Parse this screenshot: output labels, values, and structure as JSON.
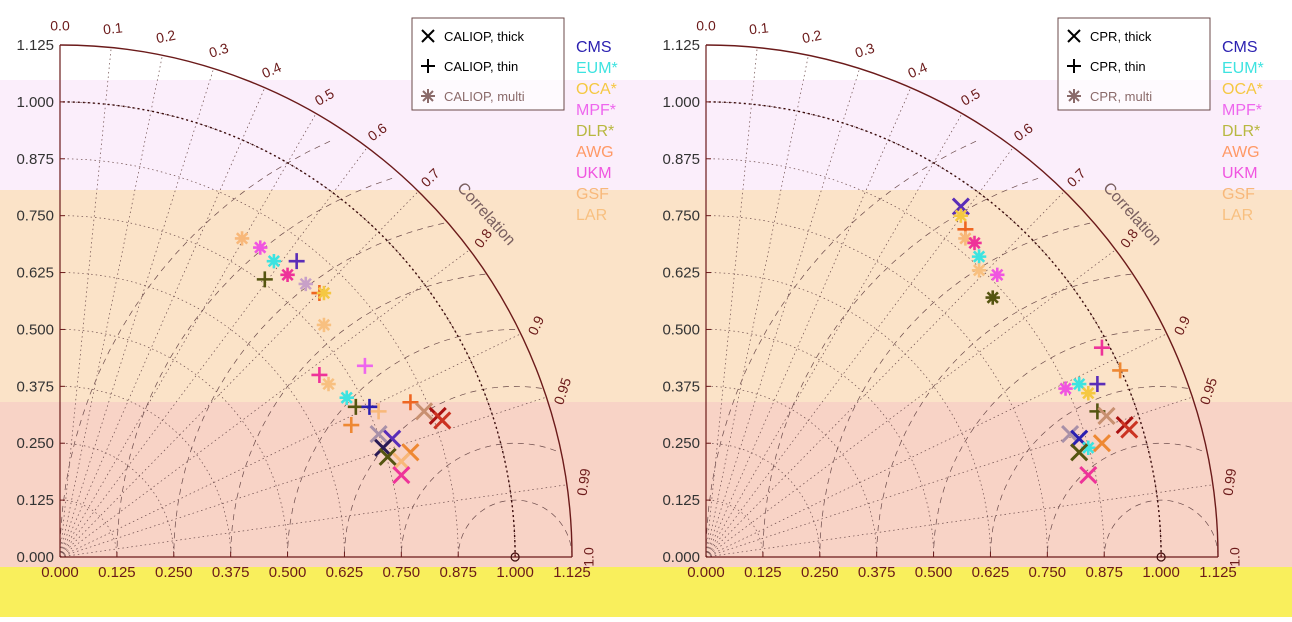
{
  "chart_data": [
    {
      "type": "scatter",
      "variant": "taylor-diagram",
      "title": "",
      "xlabel": "",
      "ylabel": "",
      "xlim": [
        0,
        1.125
      ],
      "ylim": [
        0,
        1.125
      ],
      "correlation_label": "Correlation",
      "x_ticks": [
        "0.000",
        "0.125",
        "0.250",
        "0.375",
        "0.500",
        "0.625",
        "0.750",
        "0.875",
        "1.000",
        "1.125"
      ],
      "y_ticks": [
        "0.000",
        "0.125",
        "0.250",
        "0.375",
        "0.500",
        "0.625",
        "0.750",
        "0.875",
        "1.000",
        "1.125"
      ],
      "corr_ticks": [
        "0.0",
        "0.1",
        "0.2",
        "0.3",
        "0.4",
        "0.5",
        "0.6",
        "0.7",
        "0.8",
        "0.9",
        "0.95",
        "0.99",
        "1.0"
      ],
      "legend_types": [
        {
          "label": "CALIOP, thick",
          "marker": "x"
        },
        {
          "label": "CALIOP, thin",
          "marker": "+"
        },
        {
          "label": "CALIOP, multi",
          "marker": "*"
        }
      ],
      "datasets": [
        {
          "name": "CMS",
          "color": "#2a1fb0"
        },
        {
          "name": "EUM*",
          "color": "#3de3e0"
        },
        {
          "name": "OCA*",
          "color": "#f5c842"
        },
        {
          "name": "MPF*",
          "color": "#ee66ee"
        },
        {
          "name": "DLR*",
          "color": "#b8b840"
        },
        {
          "name": "AWG",
          "color": "#ff9966"
        },
        {
          "name": "UKM",
          "color": "#f055e0"
        },
        {
          "name": "GSF",
          "color": "#f8b87a"
        },
        {
          "name": "LAR",
          "color": "#f8c080"
        }
      ],
      "points": [
        {
          "marker": "*",
          "color": "#f8b87a",
          "x": 0.4,
          "y": 0.7
        },
        {
          "marker": "*",
          "color": "#f055e0",
          "x": 0.44,
          "y": 0.68
        },
        {
          "marker": "*",
          "color": "#3de3e0",
          "x": 0.47,
          "y": 0.65
        },
        {
          "marker": "+",
          "color": "#5a2db8",
          "x": 0.52,
          "y": 0.65
        },
        {
          "marker": "*",
          "color": "#ee3399",
          "x": 0.5,
          "y": 0.62
        },
        {
          "marker": "+",
          "color": "#555511",
          "x": 0.45,
          "y": 0.61
        },
        {
          "marker": "*",
          "color": "#c8a0c8",
          "x": 0.54,
          "y": 0.6
        },
        {
          "marker": "+",
          "color": "#ee6622",
          "x": 0.57,
          "y": 0.58
        },
        {
          "marker": "*",
          "color": "#f5c842",
          "x": 0.58,
          "y": 0.58
        },
        {
          "marker": "*",
          "color": "#f8c080",
          "x": 0.58,
          "y": 0.51
        },
        {
          "marker": "+",
          "color": "#ee3399",
          "x": 0.57,
          "y": 0.4
        },
        {
          "marker": "+",
          "color": "#ee66ee",
          "x": 0.67,
          "y": 0.42
        },
        {
          "marker": "*",
          "color": "#f8c080",
          "x": 0.59,
          "y": 0.38
        },
        {
          "marker": "*",
          "color": "#3de3e0",
          "x": 0.63,
          "y": 0.35
        },
        {
          "marker": "+",
          "color": "#555511",
          "x": 0.65,
          "y": 0.33
        },
        {
          "marker": "+",
          "color": "#2a1fb0",
          "x": 0.68,
          "y": 0.33
        },
        {
          "marker": "+",
          "color": "#f8b87a",
          "x": 0.7,
          "y": 0.32
        },
        {
          "marker": "+",
          "color": "#ee6622",
          "x": 0.77,
          "y": 0.34
        },
        {
          "marker": "x",
          "color": "#c89070",
          "x": 0.8,
          "y": 0.32
        },
        {
          "marker": "x",
          "color": "#aa1111",
          "x": 0.83,
          "y": 0.31
        },
        {
          "marker": "x",
          "color": "#cc3322",
          "x": 0.84,
          "y": 0.3
        },
        {
          "marker": "+",
          "color": "#ee8833",
          "x": 0.64,
          "y": 0.29
        },
        {
          "marker": "x",
          "color": "#a890a8",
          "x": 0.7,
          "y": 0.27
        },
        {
          "marker": "x",
          "color": "#5a2db8",
          "x": 0.73,
          "y": 0.26
        },
        {
          "marker": "x",
          "color": "#2a1a55",
          "x": 0.71,
          "y": 0.24
        },
        {
          "marker": "x",
          "color": "#ee8833",
          "x": 0.77,
          "y": 0.23
        },
        {
          "marker": "x",
          "color": "#555511",
          "x": 0.72,
          "y": 0.22
        },
        {
          "marker": "x",
          "color": "#f8b87a",
          "x": 0.75,
          "y": 0.21
        },
        {
          "marker": "x",
          "color": "#ee3399",
          "x": 0.75,
          "y": 0.18
        }
      ]
    },
    {
      "type": "scatter",
      "variant": "taylor-diagram",
      "title": "",
      "xlabel": "",
      "ylabel": "",
      "xlim": [
        0,
        1.125
      ],
      "ylim": [
        0,
        1.125
      ],
      "correlation_label": "Correlation",
      "x_ticks": [
        "0.000",
        "0.125",
        "0.250",
        "0.375",
        "0.500",
        "0.625",
        "0.750",
        "0.875",
        "1.000",
        "1.125"
      ],
      "y_ticks": [
        "0.000",
        "0.125",
        "0.250",
        "0.375",
        "0.500",
        "0.625",
        "0.750",
        "0.875",
        "1.000",
        "1.125"
      ],
      "corr_ticks": [
        "0.0",
        "0.1",
        "0.2",
        "0.3",
        "0.4",
        "0.5",
        "0.6",
        "0.7",
        "0.8",
        "0.9",
        "0.95",
        "0.99",
        "1.0"
      ],
      "legend_types": [
        {
          "label": "CPR, thick",
          "marker": "x"
        },
        {
          "label": "CPR, thin",
          "marker": "+"
        },
        {
          "label": "CPR, multi",
          "marker": "*"
        }
      ],
      "datasets": [
        {
          "name": "CMS",
          "color": "#2a1fb0"
        },
        {
          "name": "EUM*",
          "color": "#3de3e0"
        },
        {
          "name": "OCA*",
          "color": "#f5c842"
        },
        {
          "name": "MPF*",
          "color": "#ee66ee"
        },
        {
          "name": "DLR*",
          "color": "#b8b840"
        },
        {
          "name": "AWG",
          "color": "#ff9966"
        },
        {
          "name": "UKM",
          "color": "#f055e0"
        },
        {
          "name": "GSF",
          "color": "#f8b87a"
        },
        {
          "name": "LAR",
          "color": "#f8c080"
        }
      ],
      "points": [
        {
          "marker": "x",
          "color": "#5a2db8",
          "x": 0.56,
          "y": 0.77
        },
        {
          "marker": "*",
          "color": "#f5c842",
          "x": 0.56,
          "y": 0.75
        },
        {
          "marker": "+",
          "color": "#ee6622",
          "x": 0.57,
          "y": 0.72
        },
        {
          "marker": "*",
          "color": "#f8b87a",
          "x": 0.57,
          "y": 0.7
        },
        {
          "marker": "*",
          "color": "#ee3399",
          "x": 0.59,
          "y": 0.69
        },
        {
          "marker": "*",
          "color": "#3de3e0",
          "x": 0.6,
          "y": 0.66
        },
        {
          "marker": "*",
          "color": "#f8c080",
          "x": 0.6,
          "y": 0.63
        },
        {
          "marker": "*",
          "color": "#f055e0",
          "x": 0.64,
          "y": 0.62
        },
        {
          "marker": "*",
          "color": "#555511",
          "x": 0.63,
          "y": 0.57
        },
        {
          "marker": "+",
          "color": "#ee3399",
          "x": 0.87,
          "y": 0.46
        },
        {
          "marker": "+",
          "color": "#ee8833",
          "x": 0.91,
          "y": 0.41
        },
        {
          "marker": "*",
          "color": "#f055e0",
          "x": 0.79,
          "y": 0.37
        },
        {
          "marker": "*",
          "color": "#3de3e0",
          "x": 0.82,
          "y": 0.38
        },
        {
          "marker": "+",
          "color": "#5a2db8",
          "x": 0.86,
          "y": 0.38
        },
        {
          "marker": "*",
          "color": "#f5c842",
          "x": 0.84,
          "y": 0.36
        },
        {
          "marker": "+",
          "color": "#555511",
          "x": 0.86,
          "y": 0.32
        },
        {
          "marker": "x",
          "color": "#c89070",
          "x": 0.88,
          "y": 0.31
        },
        {
          "marker": "x",
          "color": "#aa1111",
          "x": 0.92,
          "y": 0.29
        },
        {
          "marker": "x",
          "color": "#cc3322",
          "x": 0.93,
          "y": 0.28
        },
        {
          "marker": "x",
          "color": "#a890a8",
          "x": 0.8,
          "y": 0.27
        },
        {
          "marker": "x",
          "color": "#2a1fb0",
          "x": 0.82,
          "y": 0.26
        },
        {
          "marker": "*",
          "color": "#3de3e0",
          "x": 0.84,
          "y": 0.24
        },
        {
          "marker": "x",
          "color": "#ee8833",
          "x": 0.87,
          "y": 0.25
        },
        {
          "marker": "x",
          "color": "#555511",
          "x": 0.82,
          "y": 0.23
        },
        {
          "marker": "x",
          "color": "#ee3399",
          "x": 0.84,
          "y": 0.18
        }
      ]
    }
  ]
}
